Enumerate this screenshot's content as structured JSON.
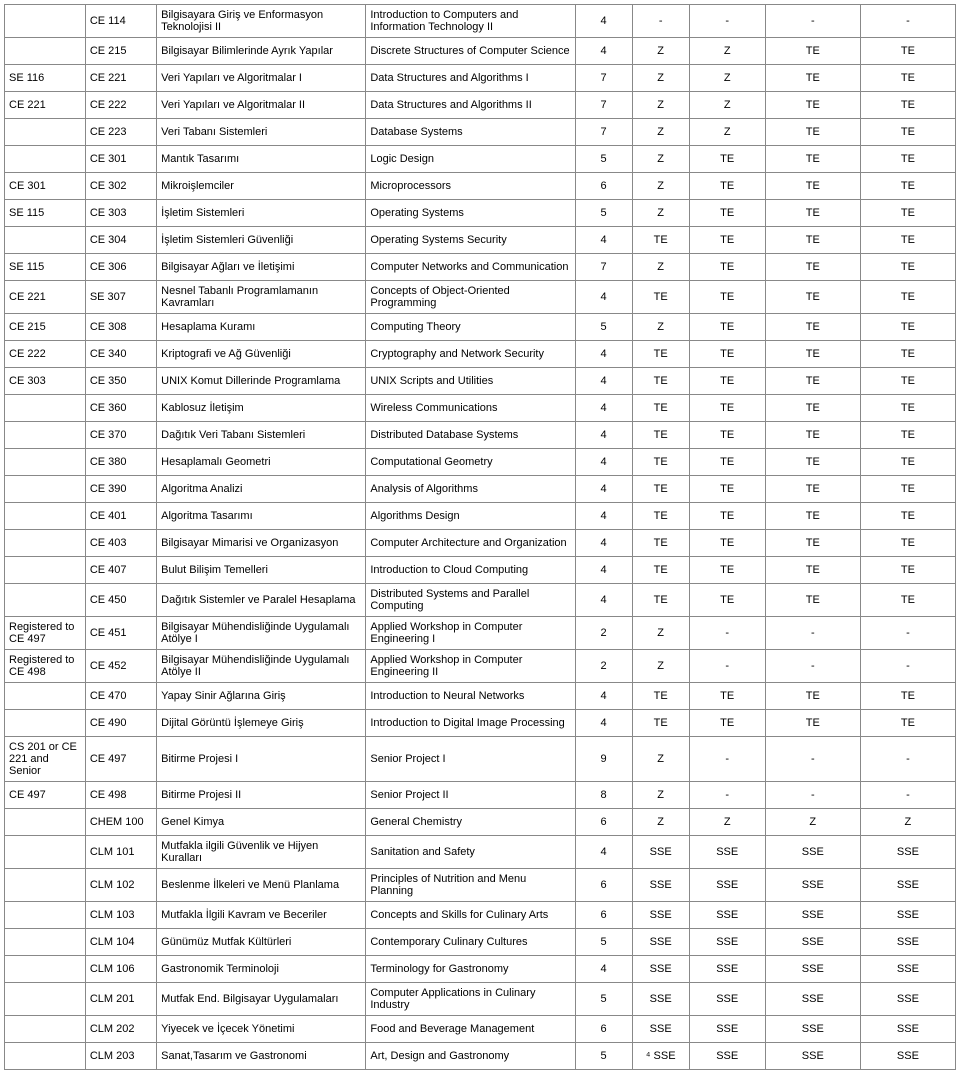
{
  "columns": [
    "c0",
    "c1",
    "c2",
    "c3",
    "c4",
    "c5",
    "c6",
    "c7",
    "c8"
  ],
  "rows": [
    [
      "",
      "CE 114",
      "Bilgisayara Giriş ve Enformasyon Teknolojisi II",
      "Introduction to Computers and Information Technology II",
      "4",
      "-",
      "-",
      "-",
      "-"
    ],
    [
      "",
      "CE 215",
      "Bilgisayar Bilimlerinde Ayrık Yapılar",
      "Discrete Structures of Computer Science",
      "4",
      "Z",
      "Z",
      "TE",
      "TE"
    ],
    [
      "SE 116",
      "CE 221",
      "Veri Yapıları ve Algoritmalar I",
      "Data Structures and Algorithms I",
      "7",
      "Z",
      "Z",
      "TE",
      "TE"
    ],
    [
      "CE 221",
      "CE 222",
      "Veri Yapıları ve Algoritmalar II",
      "Data Structures and Algorithms II",
      "7",
      "Z",
      "Z",
      "TE",
      "TE"
    ],
    [
      "",
      "CE 223",
      "Veri Tabanı Sistemleri",
      "Database Systems",
      "7",
      "Z",
      "Z",
      "TE",
      "TE"
    ],
    [
      "",
      "CE 301",
      "Mantık Tasarımı",
      "Logic Design",
      "5",
      "Z",
      "TE",
      "TE",
      "TE"
    ],
    [
      "CE 301",
      "CE 302",
      "Mikroişlemciler",
      "Microprocessors",
      "6",
      "Z",
      "TE",
      "TE",
      "TE"
    ],
    [
      "SE 115",
      "CE 303",
      "İşletim Sistemleri",
      "Operating Systems",
      "5",
      "Z",
      "TE",
      "TE",
      "TE"
    ],
    [
      "",
      "CE 304",
      "İşletim Sistemleri Güvenliği",
      "Operating Systems Security",
      "4",
      "TE",
      "TE",
      "TE",
      "TE"
    ],
    [
      "SE 115",
      "CE 306",
      "Bilgisayar Ağları ve İletişimi",
      "Computer Networks and Communication",
      "7",
      "Z",
      "TE",
      "TE",
      "TE"
    ],
    [
      "CE 221",
      "SE 307",
      "Nesnel Tabanlı Programlamanın Kavramları",
      "Concepts of Object-Oriented Programming",
      "4",
      "TE",
      "TE",
      "TE",
      "TE"
    ],
    [
      "CE 215",
      "CE 308",
      "Hesaplama Kuramı",
      "Computing Theory",
      "5",
      "Z",
      "TE",
      "TE",
      "TE"
    ],
    [
      "CE 222",
      "CE 340",
      "Kriptografi ve Ağ Güvenliği",
      "Cryptography and Network Security",
      "4",
      "TE",
      "TE",
      "TE",
      "TE"
    ],
    [
      "CE 303",
      "CE 350",
      "UNIX Komut Dillerinde Programlama",
      "UNIX Scripts and Utilities",
      "4",
      "TE",
      "TE",
      "TE",
      "TE"
    ],
    [
      "",
      "CE 360",
      "Kablosuz İletişim",
      "Wireless Communications",
      "4",
      "TE",
      "TE",
      "TE",
      "TE"
    ],
    [
      "",
      "CE 370",
      "Dağıtık Veri Tabanı Sistemleri",
      "Distributed Database Systems",
      "4",
      "TE",
      "TE",
      "TE",
      "TE"
    ],
    [
      "",
      "CE 380",
      "Hesaplamalı Geometri",
      "Computational Geometry",
      "4",
      "TE",
      "TE",
      "TE",
      "TE"
    ],
    [
      "",
      "CE 390",
      "Algoritma Analizi",
      "Analysis of Algorithms",
      "4",
      "TE",
      "TE",
      "TE",
      "TE"
    ],
    [
      "",
      "CE 401",
      "Algoritma Tasarımı",
      "Algorithms Design",
      "4",
      "TE",
      "TE",
      "TE",
      "TE"
    ],
    [
      "",
      "CE 403",
      "Bilgisayar Mimarisi ve Organizasyon",
      "Computer Architecture and Organization",
      "4",
      "TE",
      "TE",
      "TE",
      "TE"
    ],
    [
      "",
      "CE 407",
      "Bulut Bilişim Temelleri",
      "Introduction to Cloud Computing",
      "4",
      "TE",
      "TE",
      "TE",
      "TE"
    ],
    [
      "",
      "CE 450",
      "Dağıtık Sistemler ve Paralel Hesaplama",
      "Distributed Systems and Parallel Computing",
      "4",
      "TE",
      "TE",
      "TE",
      "TE"
    ],
    [
      "Registered to CE 497",
      "CE 451",
      "Bilgisayar Mühendisliğinde Uygulamalı Atölye I",
      "Applied Workshop in Computer Engineering I",
      "2",
      "Z",
      "-",
      "-",
      "-"
    ],
    [
      "Registered to CE 498",
      "CE 452",
      "Bilgisayar Mühendisliğinde Uygulamalı Atölye II",
      "Applied Workshop in Computer Engineering II",
      "2",
      "Z",
      "-",
      "-",
      "-"
    ],
    [
      "",
      "CE 470",
      "Yapay Sinir Ağlarına Giriş",
      "Introduction to Neural Networks",
      "4",
      "TE",
      "TE",
      "TE",
      "TE"
    ],
    [
      "",
      "CE 490",
      "Dijital Görüntü İşlemeye Giriş",
      "Introduction to Digital Image Processing",
      "4",
      "TE",
      "TE",
      "TE",
      "TE"
    ],
    [
      "CS 201 or CE 221 and Senior",
      "CE 497",
      "Bitirme Projesi I",
      "Senior Project I",
      "9",
      "Z",
      "-",
      "-",
      "-"
    ],
    [
      "CE 497",
      "CE 498",
      "Bitirme Projesi II",
      "Senior Project II",
      "8",
      "Z",
      "-",
      "-",
      "-"
    ],
    [
      "",
      "CHEM 100",
      "Genel Kimya",
      "General Chemistry",
      "6",
      "Z",
      "Z",
      "Z",
      "Z"
    ],
    [
      "",
      "CLM 101",
      "Mutfakla ilgili Güvenlik ve Hijyen Kuralları",
      "Sanitation and Safety",
      "4",
      "SSE",
      "SSE",
      "SSE",
      "SSE"
    ],
    [
      "",
      "CLM 102",
      "Beslenme İlkeleri ve Menü Planlama",
      "Principles of Nutrition and Menu Planning",
      "6",
      "SSE",
      "SSE",
      "SSE",
      "SSE"
    ],
    [
      "",
      "CLM 103",
      "Mutfakla İlgili Kavram ve Beceriler",
      "Concepts and Skills for Culinary Arts",
      "6",
      "SSE",
      "SSE",
      "SSE",
      "SSE"
    ],
    [
      "",
      "CLM 104",
      "Günümüz Mutfak Kültürleri",
      "Contemporary Culinary Cultures",
      "5",
      "SSE",
      "SSE",
      "SSE",
      "SSE"
    ],
    [
      "",
      "CLM 106",
      "Gastronomik Terminoloji",
      "Terminology for Gastronomy",
      "4",
      "SSE",
      "SSE",
      "SSE",
      "SSE"
    ],
    [
      "",
      "CLM 201",
      "Mutfak End. Bilgisayar Uygulamaları",
      "Computer Applications in Culinary Industry",
      "5",
      "SSE",
      "SSE",
      "SSE",
      "SSE"
    ],
    [
      "",
      "CLM 202",
      "Yiyecek ve İçecek Yönetimi",
      "Food and Beverage Management",
      "6",
      "SSE",
      "SSE",
      "SSE",
      "SSE"
    ],
    [
      "",
      "CLM 203",
      "Sanat,Tasarım ve Gastronomi",
      "Art, Design and Gastronomy",
      "5",
      "⁴ SSE",
      "SSE",
      "SSE",
      "SSE"
    ]
  ]
}
